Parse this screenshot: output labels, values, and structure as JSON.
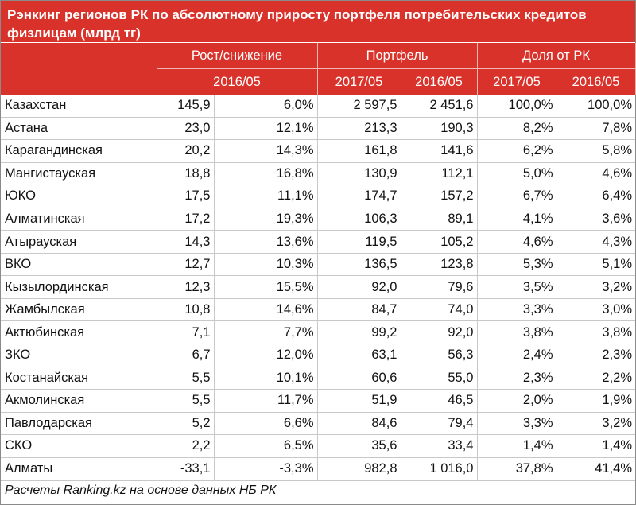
{
  "title": "Рэнкинг регионов РК по абсолютному приросту портфеля потребительских кредитов физлицам (млрд тг)",
  "headers": {
    "growth": "Рост/снижение",
    "portfolio": "Портфель",
    "share": "Доля от РК",
    "growth_period": "2016/05",
    "year_2017": "2017/05",
    "year_2016": "2016/05",
    "share_2017": "2017/05",
    "share_2016": "2016/05"
  },
  "rows": [
    [
      "Казахстан",
      "145,9",
      "6,0%",
      "2 597,5",
      "2 451,6",
      "100,0%",
      "100,0%"
    ],
    [
      "Астана",
      "23,0",
      "12,1%",
      "213,3",
      "190,3",
      "8,2%",
      "7,8%"
    ],
    [
      "Карагандинская",
      "20,2",
      "14,3%",
      "161,8",
      "141,6",
      "6,2%",
      "5,8%"
    ],
    [
      "Мангистауская",
      "18,8",
      "16,8%",
      "130,9",
      "112,1",
      "5,0%",
      "4,6%"
    ],
    [
      "ЮКО",
      "17,5",
      "11,1%",
      "174,7",
      "157,2",
      "6,7%",
      "6,4%"
    ],
    [
      "Алматинская",
      "17,2",
      "19,3%",
      "106,3",
      "89,1",
      "4,1%",
      "3,6%"
    ],
    [
      "Атырауская",
      "14,3",
      "13,6%",
      "119,5",
      "105,2",
      "4,6%",
      "4,3%"
    ],
    [
      "ВКО",
      "12,7",
      "10,3%",
      "136,5",
      "123,8",
      "5,3%",
      "5,1%"
    ],
    [
      "Кызылординская",
      "12,3",
      "15,5%",
      "92,0",
      "79,6",
      "3,5%",
      "3,2%"
    ],
    [
      "Жамбылская",
      "10,8",
      "14,6%",
      "84,7",
      "74,0",
      "3,3%",
      "3,0%"
    ],
    [
      "Актюбинская",
      "7,1",
      "7,7%",
      "99,2",
      "92,0",
      "3,8%",
      "3,8%"
    ],
    [
      "ЗКО",
      "6,7",
      "12,0%",
      "63,1",
      "56,3",
      "2,4%",
      "2,3%"
    ],
    [
      "Костанайская",
      "5,5",
      "10,1%",
      "60,6",
      "55,0",
      "2,3%",
      "2,2%"
    ],
    [
      "Акмолинская",
      "5,5",
      "11,7%",
      "51,9",
      "46,5",
      "2,0%",
      "1,9%"
    ],
    [
      "Павлодарская",
      "5,2",
      "6,6%",
      "84,6",
      "79,4",
      "3,3%",
      "3,2%"
    ],
    [
      "СКО",
      "2,2",
      "6,5%",
      "35,6",
      "33,4",
      "1,4%",
      "1,4%"
    ],
    [
      "Алматы",
      "-33,1",
      "-3,3%",
      "982,8",
      "1 016,0",
      "37,8%",
      "41,4%"
    ]
  ],
  "footer": "Расчеты Ranking.kz на основе данных НБ РК",
  "colors": {
    "header_bg": "#d9322b",
    "header_text": "#ffffff"
  }
}
